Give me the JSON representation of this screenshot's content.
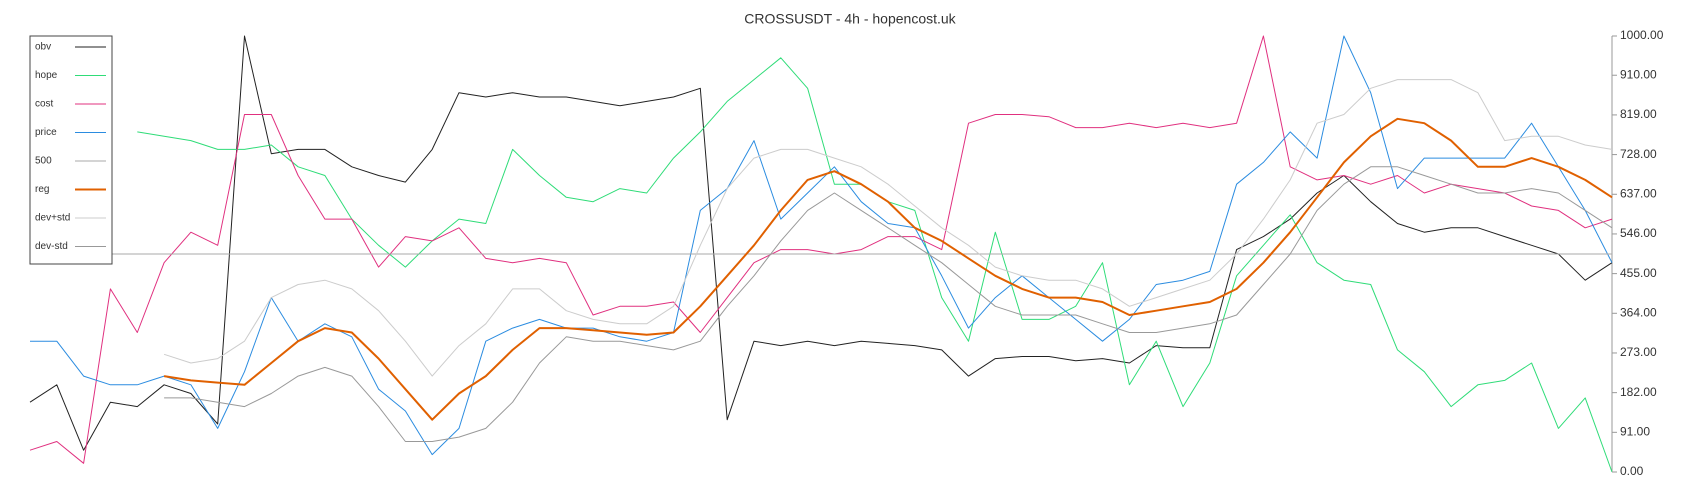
{
  "chart_data": {
    "type": "line",
    "title": "CROSSUSDT - 4h - hopencost.uk",
    "ylim": [
      0,
      1000
    ],
    "yticks": [
      {
        "value": 0,
        "label": "0.00"
      },
      {
        "value": 91,
        "label": "91.00"
      },
      {
        "value": 182,
        "label": "182.00"
      },
      {
        "value": 273,
        "label": "273.00"
      },
      {
        "value": 364,
        "label": "364.00"
      },
      {
        "value": 455,
        "label": "455.00"
      },
      {
        "value": 546,
        "label": "546.00"
      },
      {
        "value": 637,
        "label": "637.00"
      },
      {
        "value": 728,
        "label": "728.00"
      },
      {
        "value": 819,
        "label": "819.00"
      },
      {
        "value": 910,
        "label": "910.00"
      },
      {
        "value": 1000,
        "label": "1000.00"
      }
    ],
    "legend": "upper-left",
    "series": [
      {
        "name": "obv",
        "color": "#222222",
        "width": 1,
        "values": [
          160,
          200,
          50,
          160,
          150,
          200,
          180,
          110,
          1000,
          730,
          740,
          740,
          700,
          680,
          665,
          740,
          870,
          860,
          870,
          860,
          860,
          850,
          840,
          850,
          860,
          880,
          120,
          300,
          290,
          300,
          290,
          300,
          295,
          290,
          280,
          220,
          260,
          265,
          265,
          255,
          260,
          250,
          290,
          285,
          285,
          510,
          540,
          580,
          640,
          680,
          620,
          570,
          550,
          560,
          560,
          540,
          520,
          500,
          440,
          480
        ]
      },
      {
        "name": "hope",
        "color": "#2fdc78",
        "width": 1,
        "values": [
          null,
          null,
          null,
          null,
          780,
          770,
          760,
          740,
          740,
          750,
          700,
          680,
          580,
          520,
          470,
          530,
          580,
          570,
          740,
          680,
          630,
          620,
          650,
          640,
          720,
          780,
          850,
          900,
          950,
          880,
          660,
          660,
          620,
          600,
          400,
          300,
          550,
          350,
          350,
          380,
          480,
          200,
          300,
          150,
          250,
          450,
          520,
          590,
          480,
          440,
          430,
          280,
          230,
          150,
          200,
          210,
          250,
          100,
          170,
          0
        ]
      },
      {
        "name": "cost",
        "color": "#e0307f",
        "width": 1,
        "values": [
          50,
          70,
          20,
          420,
          320,
          480,
          550,
          520,
          820,
          820,
          680,
          580,
          580,
          470,
          540,
          530,
          560,
          490,
          480,
          490,
          480,
          360,
          380,
          380,
          390,
          320,
          400,
          480,
          510,
          510,
          500,
          510,
          540,
          540,
          510,
          800,
          820,
          820,
          815,
          790,
          790,
          800,
          790,
          800,
          790,
          800,
          1000,
          700,
          670,
          680,
          660,
          680,
          640,
          660,
          650,
          640,
          610,
          600,
          560,
          580
        ]
      },
      {
        "name": "price",
        "color": "#2b8ce0",
        "width": 1,
        "values": [
          300,
          300,
          220,
          200,
          200,
          220,
          200,
          100,
          230,
          400,
          300,
          340,
          310,
          190,
          140,
          40,
          100,
          300,
          330,
          350,
          330,
          330,
          310,
          300,
          320,
          600,
          650,
          760,
          580,
          640,
          700,
          620,
          570,
          560,
          450,
          330,
          400,
          450,
          400,
          350,
          300,
          350,
          430,
          440,
          460,
          660,
          710,
          780,
          720,
          1000,
          870,
          650,
          720,
          720,
          720,
          720,
          800,
          700,
          600,
          480
        ]
      },
      {
        "name": "500",
        "color": "#aaaaaa",
        "width": 1,
        "values": [
          500,
          500,
          500,
          500,
          500,
          500,
          500,
          500,
          500,
          500,
          500,
          500,
          500,
          500,
          500,
          500,
          500,
          500,
          500,
          500,
          500,
          500,
          500,
          500,
          500,
          500,
          500,
          500,
          500,
          500,
          500,
          500,
          500,
          500,
          500,
          500,
          500,
          500,
          500,
          500,
          500,
          500,
          500,
          500,
          500,
          500,
          500,
          500,
          500,
          500,
          500,
          500,
          500,
          500,
          500,
          500,
          500,
          500,
          500,
          500
        ]
      },
      {
        "name": "reg",
        "color": "#e06000",
        "width": 2,
        "values": [
          null,
          null,
          null,
          null,
          null,
          220,
          210,
          205,
          200,
          250,
          300,
          330,
          320,
          260,
          190,
          120,
          180,
          220,
          280,
          330,
          330,
          325,
          320,
          315,
          320,
          380,
          450,
          520,
          600,
          670,
          690,
          660,
          620,
          560,
          530,
          490,
          450,
          420,
          400,
          400,
          390,
          360,
          370,
          380,
          390,
          420,
          480,
          550,
          630,
          710,
          770,
          810,
          800,
          760,
          700,
          700,
          720,
          700,
          670,
          630
        ]
      },
      {
        "name": "dev+std",
        "color": "#cccccc",
        "width": 1,
        "values": [
          null,
          null,
          null,
          null,
          null,
          270,
          250,
          260,
          300,
          400,
          430,
          440,
          420,
          370,
          300,
          220,
          290,
          340,
          420,
          420,
          370,
          350,
          340,
          340,
          380,
          520,
          650,
          720,
          740,
          740,
          720,
          700,
          660,
          610,
          560,
          520,
          470,
          450,
          440,
          440,
          420,
          380,
          400,
          420,
          440,
          500,
          580,
          670,
          800,
          820,
          880,
          900,
          900,
          900,
          870,
          760,
          770,
          770,
          750,
          740
        ]
      },
      {
        "name": "dev-std",
        "color": "#999999",
        "width": 1,
        "values": [
          null,
          null,
          null,
          null,
          null,
          170,
          170,
          160,
          150,
          180,
          220,
          240,
          220,
          150,
          70,
          70,
          80,
          100,
          160,
          250,
          310,
          300,
          300,
          290,
          280,
          300,
          380,
          450,
          530,
          600,
          640,
          600,
          560,
          520,
          480,
          430,
          380,
          360,
          360,
          360,
          340,
          320,
          320,
          330,
          340,
          360,
          430,
          500,
          600,
          660,
          700,
          700,
          680,
          660,
          640,
          640,
          650,
          640,
          600,
          560
        ]
      }
    ]
  }
}
